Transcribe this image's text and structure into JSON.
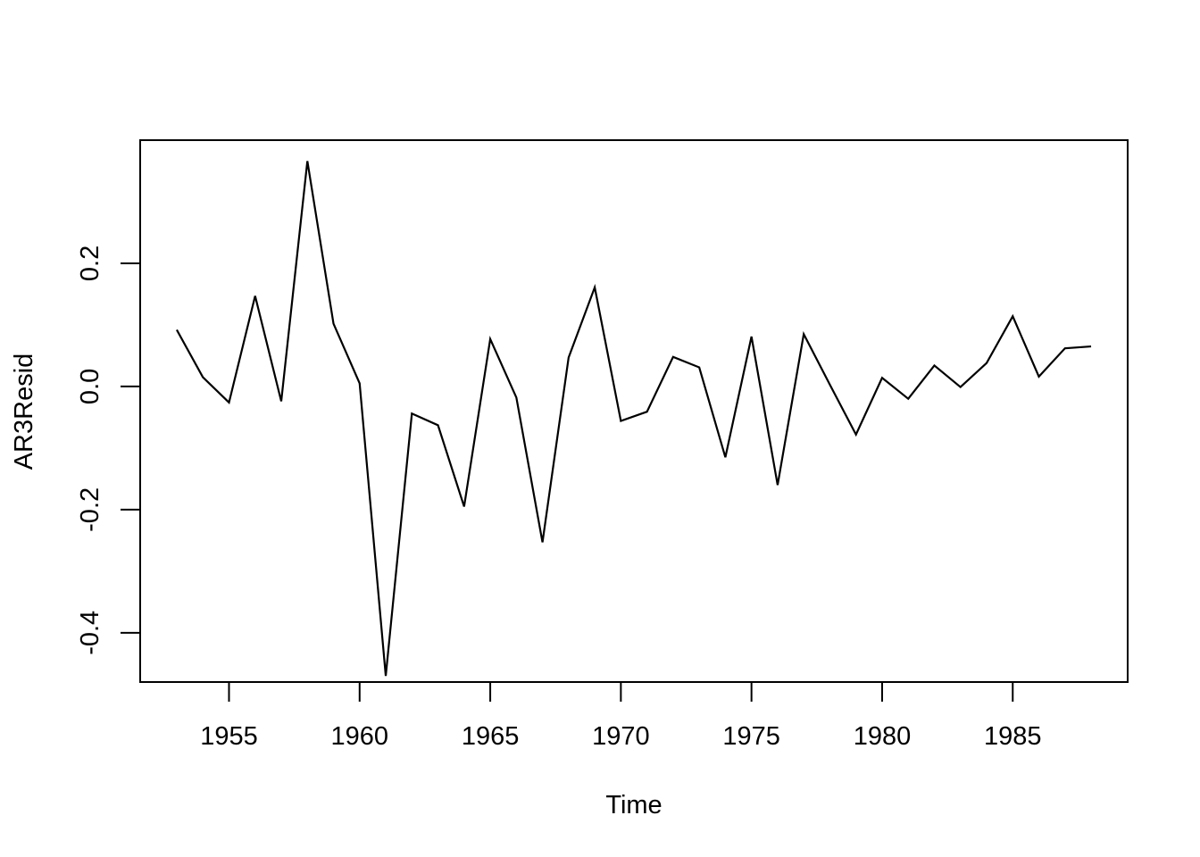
{
  "chart_data": {
    "type": "line",
    "title": "",
    "xlabel": "Time",
    "ylabel": "AR3Resid",
    "xlim": [
      1951.6,
      1989.4
    ],
    "ylim": [
      -0.48,
      0.4
    ],
    "xticks": [
      1955,
      1960,
      1965,
      1970,
      1975,
      1980,
      1985
    ],
    "xtick_labels": [
      "1955",
      "1960",
      "1965",
      "1970",
      "1975",
      "1980",
      "1985"
    ],
    "yticks": [
      -0.4,
      -0.2,
      0.0,
      0.2
    ],
    "ytick_labels": [
      "-0.4",
      "-0.2",
      "0.0",
      "0.2"
    ],
    "grid": false,
    "legend": "none",
    "line_color": "#000000",
    "series": [
      {
        "x": [
          1953,
          1954,
          1955,
          1956,
          1957,
          1958,
          1959,
          1960,
          1961,
          1962,
          1963,
          1964,
          1965,
          1966,
          1967,
          1968,
          1969,
          1970,
          1971,
          1972,
          1973,
          1974,
          1975,
          1976,
          1977,
          1978,
          1979,
          1980,
          1981,
          1982,
          1983,
          1984,
          1985,
          1986,
          1987,
          1988
        ],
        "values": [
          0.092,
          0.015,
          -0.026,
          0.147,
          -0.024,
          0.366,
          0.102,
          0.005,
          -0.47,
          -0.044,
          -0.063,
          -0.195,
          0.077,
          -0.018,
          -0.253,
          0.047,
          0.161,
          -0.056,
          -0.041,
          0.048,
          0.031,
          -0.115,
          0.081,
          -0.16,
          0.085,
          0.003,
          -0.078,
          0.014,
          -0.02,
          0.034,
          -0.001,
          0.038,
          0.114,
          0.016,
          0.062,
          0.065
        ]
      }
    ]
  }
}
